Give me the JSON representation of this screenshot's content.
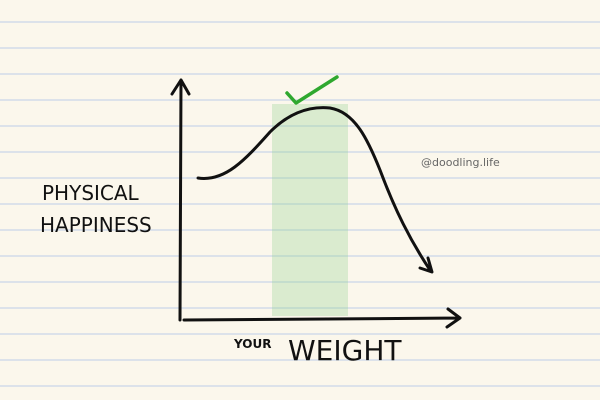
{
  "y_label": [
    "PHYSICAL",
    "HAPPINESS"
  ],
  "x_label": {
    "prefix": "YOUR",
    "main": "WEIGHT"
  },
  "credit": "@doodling.life"
}
